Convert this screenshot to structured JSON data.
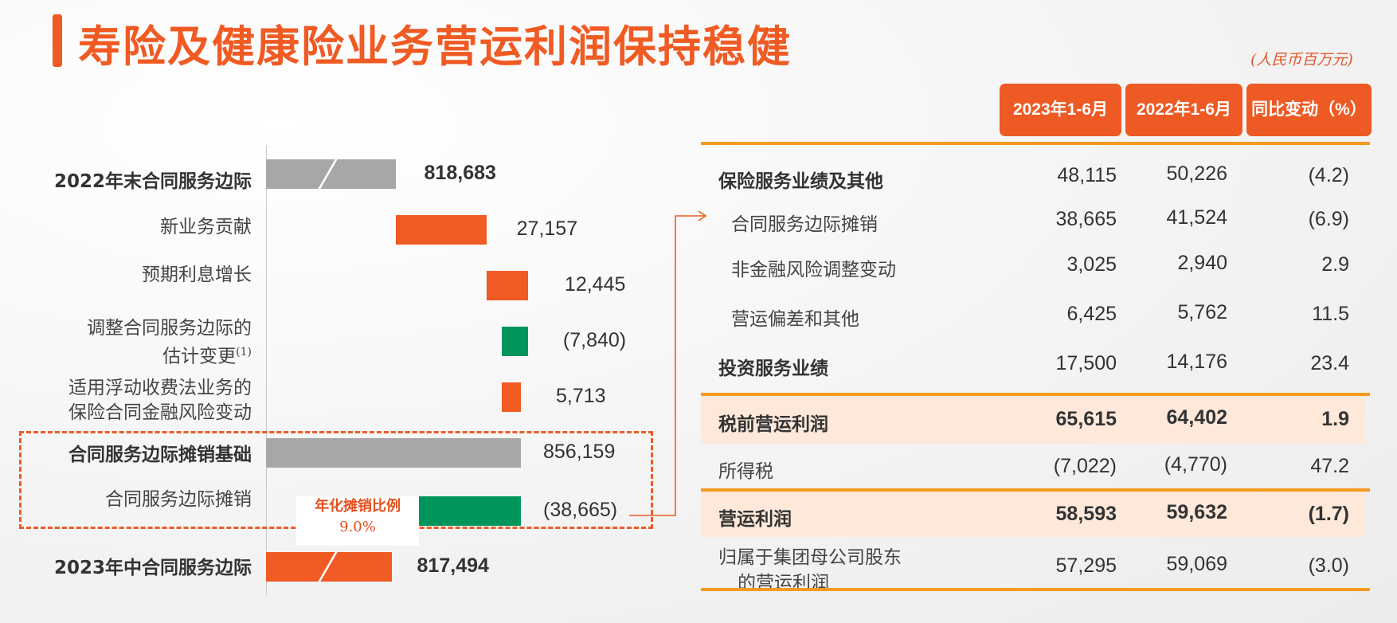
{
  "title": "寿险及健康险业务营运利润保持稳健",
  "unit_note": "(人民币百万元)",
  "colors": {
    "accent": "#f05a23",
    "bar_gray": "#a9a6a6",
    "bar_orange": "#f05a23",
    "bar_green": "#00955a",
    "rule_orange": "#f59a1e",
    "highlight": "#fde8da"
  },
  "chart_data": {
    "type": "bar",
    "subtype": "waterfall",
    "categories": [
      "2022年末合同服务边际",
      "新业务贡献",
      "预期利息增长",
      "调整合同服务边际的估计变更(1)",
      "适用浮动收费法业务的保险合同金融风险变动",
      "合同服务边际摊销基础",
      "合同服务边际摊销",
      "2023年中合同服务边际"
    ],
    "values": [
      818683,
      27157,
      12445,
      -7840,
      5713,
      856159,
      -38665,
      817494
    ],
    "value_labels": [
      "818,683",
      "27,157",
      "12,445",
      "(7,840)",
      "5,713",
      "856,159",
      "(38,665)",
      "817,494"
    ],
    "kinds": [
      "total",
      "increase",
      "increase",
      "decrease",
      "increase",
      "total",
      "decrease",
      "total-end"
    ],
    "axis_broken": true,
    "ylim": [
      780000,
      860000
    ],
    "annotation": {
      "label": "年化摊销比例",
      "value": "9.0%"
    }
  },
  "labels": {
    "cat0": "2022年末合同服务边际",
    "cat1": "新业务贡献",
    "cat2": "预期利息增长",
    "cat3_l1": "调整合同服务边际的",
    "cat3_l2": "估计变更",
    "cat3_sup": "(1)",
    "cat4_l1": "适用浮动收费法业务的",
    "cat4_l2": "保险合同金融风险变动",
    "cat5": "合同服务边际摊销基础",
    "cat6": "合同服务边际摊销",
    "cat7": "2023年中合同服务边际"
  },
  "table": {
    "headers": [
      "2023年1-6月",
      "2022年1-6月",
      "同比变动（%）"
    ],
    "rows": [
      {
        "label": "保险服务业绩及其他",
        "v2023": "48,115",
        "v2022": "50,226",
        "chg": "(4.2)"
      },
      {
        "label": "合同服务边际摊销",
        "v2023": "38,665",
        "v2022": "41,524",
        "chg": "(6.9)"
      },
      {
        "label": "非金融风险调整变动",
        "v2023": "3,025",
        "v2022": "2,940",
        "chg": "2.9"
      },
      {
        "label": "营运偏差和其他",
        "v2023": "6,425",
        "v2022": "5,762",
        "chg": "11.5"
      },
      {
        "label": "投资服务业绩",
        "v2023": "17,500",
        "v2022": "14,176",
        "chg": "23.4"
      },
      {
        "label": "税前营运利润",
        "v2023": "65,615",
        "v2022": "64,402",
        "chg": "1.9"
      },
      {
        "label": "所得税",
        "v2023": "(7,022)",
        "v2022": "(4,770)",
        "chg": "47.2"
      },
      {
        "label": "营运利润",
        "v2023": "58,593",
        "v2022": "59,632",
        "chg": "(1.7)"
      },
      {
        "label_l1": "归属于集团母公司股东",
        "label_l2": "的营运利润",
        "v2023": "57,295",
        "v2022": "59,069",
        "chg": "(3.0)"
      }
    ]
  }
}
